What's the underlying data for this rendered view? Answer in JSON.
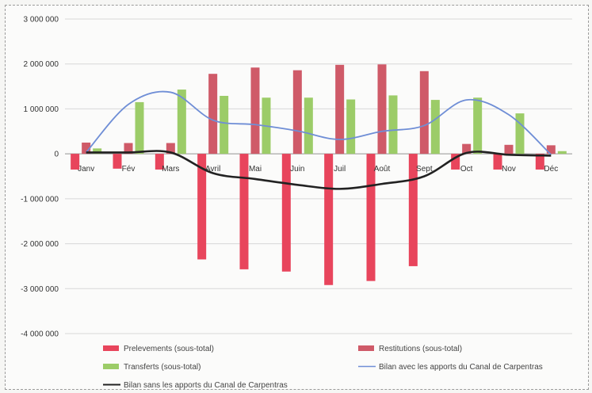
{
  "chart_data": {
    "type": "bar",
    "categories": [
      "Janv",
      "Fév",
      "Mars",
      "Avril",
      "Mai",
      "Juin",
      "Juil",
      "Août",
      "Sept",
      "Oct",
      "Nov",
      "Déc"
    ],
    "ylim": [
      -4000000,
      3000000
    ],
    "yticks": [
      3000000,
      2000000,
      1000000,
      0,
      -1000000,
      -2000000,
      -3000000,
      -4000000
    ],
    "ytick_labels": [
      "3 000 000",
      "2 000 000",
      "1 000 000",
      "0",
      "-1 000 000",
      "-2 000 000",
      "-3 000 000",
      "-4 000 000"
    ],
    "grid": true,
    "legend_position": "bottom",
    "series": [
      {
        "name": "Prelevements (sous-total)",
        "kind": "bar",
        "color": "#e8455c",
        "values": [
          -350000,
          -330000,
          -350000,
          -2350000,
          -2570000,
          -2620000,
          -2920000,
          -2830000,
          -2500000,
          -350000,
          -350000,
          -350000
        ]
      },
      {
        "name": "Restitutions (sous-total)",
        "kind": "bar",
        "color": "#cf5a68",
        "values": [
          250000,
          240000,
          240000,
          1780000,
          1920000,
          1860000,
          1980000,
          1990000,
          1840000,
          220000,
          200000,
          190000
        ]
      },
      {
        "name": "Transferts (sous-total)",
        "kind": "bar",
        "color": "#9ccc68",
        "values": [
          120000,
          1150000,
          1430000,
          1290000,
          1250000,
          1250000,
          1210000,
          1300000,
          1200000,
          1250000,
          900000,
          60000
        ]
      },
      {
        "name": "Bilan avec les apports du Canal de Carpentras",
        "kind": "line",
        "color": "#6f8ed6",
        "values": [
          30000,
          1100000,
          1370000,
          750000,
          650000,
          510000,
          320000,
          500000,
          630000,
          1200000,
          870000,
          -20000
        ]
      },
      {
        "name": "Bilan sans les apports du Canal de Carpentras",
        "kind": "line",
        "color": "#222222",
        "values": [
          30000,
          30000,
          30000,
          -430000,
          -560000,
          -690000,
          -780000,
          -670000,
          -500000,
          20000,
          -20000,
          -40000
        ]
      }
    ]
  }
}
